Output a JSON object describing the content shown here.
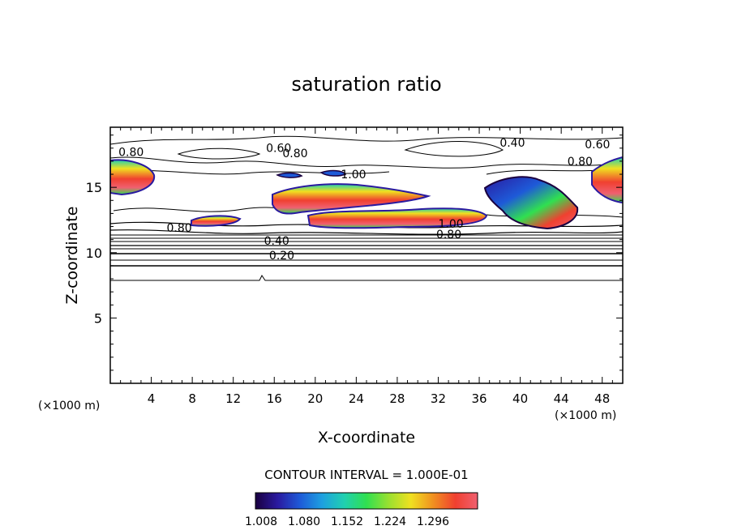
{
  "chart_data": {
    "type": "contour",
    "title": "saturation ratio",
    "xlabel": "X-coordinate",
    "ylabel": "Z-coordinate",
    "x_unit": "(×1000 m)",
    "z_unit": "(×1000 m)",
    "xlim": [
      0,
      50
    ],
    "ylim": [
      0,
      19.6
    ],
    "x_ticks": [
      4,
      8,
      12,
      16,
      20,
      24,
      28,
      32,
      36,
      40,
      44,
      48
    ],
    "y_ticks": [
      5,
      10,
      15
    ],
    "contour_interval_text": "CONTOUR INTERVAL = 1.000E-01",
    "contour_labels": [
      {
        "text": "0.80",
        "x": 0.8,
        "z": 17.4
      },
      {
        "text": "0.60",
        "x": 15.2,
        "z": 17.7
      },
      {
        "text": "0.80",
        "x": 16.8,
        "z": 17.3
      },
      {
        "text": "0.40",
        "x": 38.0,
        "z": 18.1
      },
      {
        "text": "0.60",
        "x": 46.3,
        "z": 18.0
      },
      {
        "text": "0.80",
        "x": 44.6,
        "z": 16.7
      },
      {
        "text": "1.00",
        "x": 22.5,
        "z": 15.7
      },
      {
        "text": "0.80",
        "x": 5.5,
        "z": 11.6
      },
      {
        "text": "0.40",
        "x": 15.0,
        "z": 10.6
      },
      {
        "text": "0.20",
        "x": 15.5,
        "z": 9.5
      },
      {
        "text": "1.00",
        "x": 32.0,
        "z": 11.9
      },
      {
        "text": "0.80",
        "x": 31.8,
        "z": 11.1
      }
    ],
    "colorbar": {
      "labels": [
        "1.008",
        "1.080",
        "1.152",
        "1.224",
        "1.296"
      ],
      "colors": [
        "#1a0040",
        "#2a1aa0",
        "#1e5ad8",
        "#1ea0e0",
        "#20d0b0",
        "#30e050",
        "#9ae030",
        "#f0e020",
        "#f09020",
        "#f04030",
        "#f06070"
      ]
    },
    "supersaturated_regions": [
      {
        "x_range": [
          0,
          4
        ],
        "z_range": [
          14.5,
          17.2
        ]
      },
      {
        "x_range": [
          8,
          13
        ],
        "z_range": [
          12.2,
          12.9
        ]
      },
      {
        "x_range": [
          16,
          30
        ],
        "z_range": [
          13.0,
          16.0
        ]
      },
      {
        "x_range": [
          19,
          37
        ],
        "z_range": [
          12.0,
          13.6
        ]
      },
      {
        "x_range": [
          36,
          45
        ],
        "z_range": [
          12.5,
          16.0
        ]
      },
      {
        "x_range": [
          46,
          50
        ],
        "z_range": [
          14.0,
          17.5
        ]
      }
    ]
  }
}
